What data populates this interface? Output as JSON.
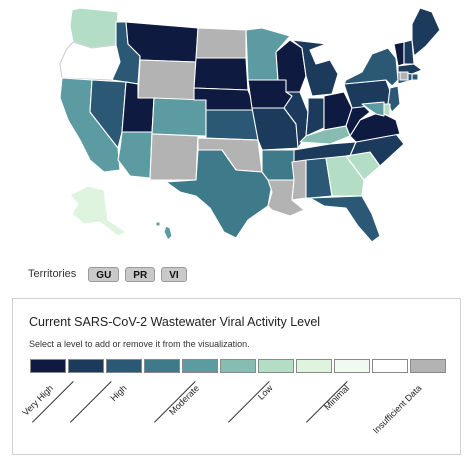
{
  "territories": {
    "label": "Territories",
    "buttons": [
      {
        "code": "GU"
      },
      {
        "code": "PR"
      },
      {
        "code": "VI"
      }
    ]
  },
  "legend": {
    "title": "Current SARS-CoV-2 Wastewater Viral Activity Level",
    "instruction": "Select a level to add or remove it from the visualization.",
    "swatches": [
      {
        "color": "#0e1a3f"
      },
      {
        "color": "#1b3a5c"
      },
      {
        "color": "#2b5975"
      },
      {
        "color": "#3e7a8a"
      },
      {
        "color": "#5d9ba2"
      },
      {
        "color": "#86bcb2"
      },
      {
        "color": "#b4ddc6"
      },
      {
        "color": "#dff4df"
      },
      {
        "color": "#f1faf0"
      },
      {
        "color": "#ffffff"
      },
      {
        "color": "#b3b3b3"
      }
    ],
    "labels": [
      "Very High",
      "High",
      "Moderate",
      "Low",
      "Minimal",
      "Insufficient Data"
    ]
  },
  "level_colors": {
    "very_high": "#0e1a3f",
    "high_dark": "#1b3a5c",
    "high": "#2b5975",
    "moderate_dark": "#3e7a8a",
    "moderate": "#5d9ba2",
    "low_dark": "#86bcb2",
    "low": "#b4ddc6",
    "minimal": "#dff4df",
    "insufficient": "#b3b3b3"
  },
  "states": {
    "WA": "low",
    "OR": "insufficient_white",
    "CA": "moderate",
    "NV": "high",
    "ID": "high",
    "MT": "very_high",
    "WY": "insufficient",
    "UT": "very_high",
    "AZ": "moderate",
    "NM": "insufficient",
    "CO": "moderate",
    "ND": "insufficient",
    "SD": "very_high",
    "NE": "very_high",
    "KS": "high",
    "OK": "insufficient",
    "TX": "moderate_dark",
    "MN": "moderate",
    "IA": "very_high",
    "MO": "high_dark",
    "AR": "moderate_dark",
    "LA": "insufficient",
    "WI": "very_high",
    "IL": "high_dark",
    "MI": "high_dark",
    "IN": "high_dark",
    "OH": "very_high",
    "KY": "low_dark",
    "TN": "high_dark",
    "MS": "insufficient",
    "AL": "high",
    "GA": "low",
    "FL": "high",
    "SC": "low",
    "NC": "high_dark",
    "VA": "very_high",
    "WV": "very_high",
    "PA": "high_dark",
    "NY": "high",
    "VT": "very_high",
    "NH": "high_dark",
    "ME": "high_dark",
    "MA": "high_dark",
    "RI": "high",
    "CT": "high",
    "NJ": "high",
    "DE": "low",
    "MD": "moderate",
    "DC": "insufficient",
    "AK": "minimal",
    "HI": "moderate"
  }
}
